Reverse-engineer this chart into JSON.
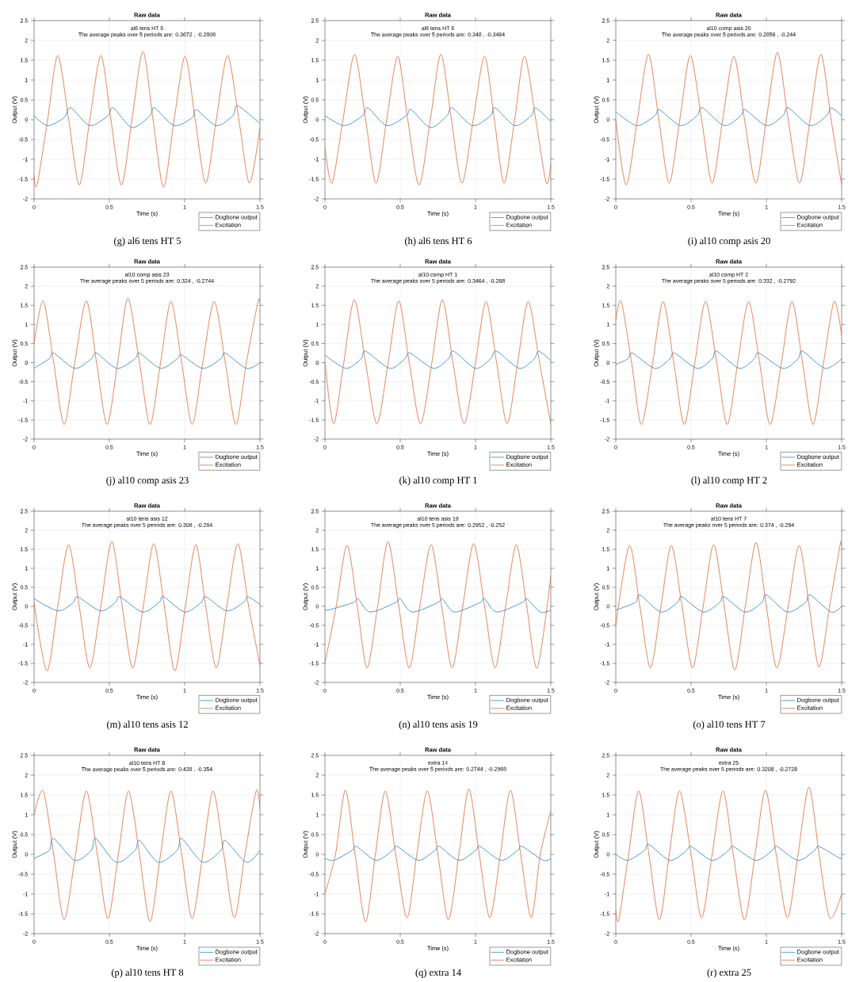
{
  "chart_data": [
    {
      "type": "line",
      "title": "Raw data",
      "xlabel": "Time (s)",
      "ylabel": "Output (V)",
      "xlim": [
        0,
        1.5
      ],
      "ylim": [
        -2,
        2.5
      ],
      "xticks": [
        0,
        0.5,
        1,
        1.5
      ],
      "yticks": [
        -2,
        -1.5,
        -1,
        -0.5,
        0,
        0.5,
        1,
        1.5,
        2,
        2.5
      ],
      "grid": true,
      "legend": "bottom right",
      "annotations": [
        "al6 tens HT 5",
        "The average peaks over 5 periods are: 0.3672 , -0.2808",
        "(g) al6 tens HT 5"
      ],
      "series": [
        {
          "name": "Dogbone output",
          "color": "#0072bd",
          "x": [
            0,
            0.09,
            0.2,
            0.243,
            0.37,
            0.49,
            0.526,
            0.65,
            0.77,
            0.8,
            0.93,
            1.05,
            1.078,
            1.21,
            1.32,
            1.353,
            1.5
          ],
          "values": [
            0.1,
            -0.15,
            0.05,
            0.3,
            -0.15,
            0.1,
            0.3,
            -0.2,
            0.1,
            0.3,
            -0.15,
            0.05,
            0.25,
            -0.15,
            0.1,
            0.35,
            -0.1
          ]
        },
        {
          "name": "Excitation",
          "color": "#d95319",
          "x": [
            0,
            0.02,
            0.09,
            0.157,
            0.23,
            0.3,
            0.37,
            0.444,
            0.51,
            0.58,
            0.65,
            0.723,
            0.79,
            0.86,
            0.93,
            1.003,
            1.07,
            1.14,
            1.21,
            1.285,
            1.36,
            1.43,
            1.5
          ],
          "values": [
            -1.4,
            -1.65,
            0,
            1.62,
            0,
            -1.65,
            0,
            1.62,
            0,
            -1.65,
            0,
            1.72,
            0,
            -1.7,
            0,
            1.6,
            0,
            -1.6,
            0,
            1.62,
            0,
            -1.6,
            -0.2
          ]
        }
      ]
    },
    {
      "type": "line",
      "title": "Raw data",
      "xlabel": "Time (s)",
      "ylabel": "Output (V)",
      "xlim": [
        0,
        1.5
      ],
      "ylim": [
        -2,
        2.5
      ],
      "xticks": [
        0,
        0.5,
        1,
        1.5
      ],
      "yticks": [
        -2,
        -1.5,
        -1,
        -0.5,
        0,
        0.5,
        1,
        1.5,
        2,
        2.5
      ],
      "grid": true,
      "legend": "bottom right",
      "annotations": [
        "al6 tens HT 6",
        "The average peaks over 5 periods are: 0.348 , -0.3464",
        "(h) al6 tens HT 6"
      ],
      "series": [
        {
          "name": "Dogbone output",
          "color": "#0072bd",
          "x": [
            0,
            0.13,
            0.25,
            0.286,
            0.41,
            0.54,
            0.573,
            0.7,
            0.81,
            0.845,
            0.98,
            1.1,
            1.13,
            1.26,
            1.37,
            1.4,
            1.5
          ],
          "values": [
            0.1,
            -0.15,
            0.1,
            0.3,
            -0.15,
            0.1,
            0.25,
            -0.2,
            0.1,
            0.3,
            -0.15,
            0.1,
            0.3,
            -0.15,
            0.1,
            0.3,
            -0.05
          ]
        },
        {
          "name": "Excitation",
          "color": "#d95319",
          "x": [
            0,
            0.047,
            0.12,
            0.197,
            0.27,
            0.34,
            0.41,
            0.483,
            0.55,
            0.625,
            0.7,
            0.77,
            0.84,
            0.91,
            0.985,
            1.06,
            1.125,
            1.19,
            1.26,
            1.325,
            1.4,
            1.47,
            1.5
          ],
          "values": [
            -0.7,
            -1.6,
            0,
            1.65,
            0,
            -1.6,
            0,
            1.6,
            0,
            -1.65,
            0,
            1.65,
            0,
            -1.6,
            0,
            1.6,
            0,
            -1.6,
            0,
            1.6,
            0,
            -1.6,
            -1.1
          ]
        }
      ]
    },
    {
      "type": "line",
      "title": "Raw data",
      "xlabel": "Time (s)",
      "ylabel": "Output (V)",
      "xlim": [
        0,
        1.5
      ],
      "ylim": [
        -2,
        2.5
      ],
      "xticks": [
        0,
        0.5,
        1,
        1.5
      ],
      "yticks": [
        -2,
        -1.5,
        -1,
        -0.5,
        0,
        0.5,
        1,
        1.5,
        2,
        2.5
      ],
      "grid": true,
      "legend": "bottom right",
      "annotations": [
        "al10 comp asis 20",
        "The average peaks over 5 periods are: 0.2856 , -0.244",
        "(i) al10 comp asis 20"
      ],
      "series": [
        {
          "name": "Dogbone output",
          "color": "#0072bd",
          "x": [
            0,
            0.14,
            0.26,
            0.29,
            0.43,
            0.54,
            0.575,
            0.72,
            0.83,
            0.86,
            1.0,
            1.11,
            1.145,
            1.29,
            1.4,
            1.43,
            1.5
          ],
          "values": [
            0.2,
            -0.15,
            0.1,
            0.25,
            -0.15,
            0.1,
            0.3,
            -0.15,
            0.1,
            0.25,
            -0.15,
            0.1,
            0.3,
            -0.15,
            0.1,
            0.3,
            0.1
          ]
        },
        {
          "name": "Excitation",
          "color": "#d95319",
          "x": [
            0,
            0.069,
            0.143,
            0.217,
            0.286,
            0.355,
            0.425,
            0.495,
            0.57,
            0.64,
            0.71,
            0.784,
            0.855,
            0.93,
            1.0,
            1.073,
            1.145,
            1.22,
            1.29,
            1.362,
            1.43,
            1.5
          ],
          "values": [
            0,
            -1.65,
            0,
            1.65,
            0,
            -1.6,
            0,
            1.62,
            0,
            -1.6,
            0,
            1.6,
            0,
            -1.6,
            0,
            1.7,
            0,
            -1.6,
            0,
            1.65,
            0,
            -1.65
          ]
        }
      ]
    },
    {
      "type": "line",
      "title": "Raw data",
      "xlabel": "Time (s)",
      "ylabel": "Output (V)",
      "xlim": [
        0,
        1.5
      ],
      "ylim": [
        -2,
        2.5
      ],
      "xticks": [
        0,
        0.5,
        1,
        1.5
      ],
      "yticks": [
        -2,
        -1.5,
        -1,
        -0.5,
        0,
        0.5,
        1,
        1.5,
        2,
        2.5
      ],
      "grid": true,
      "legend": "bottom right",
      "annotations": [
        "al10 comp asis 23",
        "The average peaks over 5 periods are: 0.324 , -0.2744",
        "(j) al10 comp asis 23"
      ],
      "series": [
        {
          "name": "Dogbone output",
          "color": "#0072bd",
          "x": [
            0,
            0.1,
            0.13,
            0.27,
            0.38,
            0.415,
            0.55,
            0.67,
            0.7,
            0.84,
            0.95,
            0.98,
            1.12,
            1.24,
            1.27,
            1.41,
            1.5
          ],
          "values": [
            -0.15,
            0.1,
            0.25,
            -0.15,
            0.1,
            0.25,
            -0.15,
            0.1,
            0.25,
            -0.15,
            0.1,
            0.2,
            -0.15,
            0.1,
            0.25,
            -0.15,
            0
          ]
        },
        {
          "name": "Excitation",
          "color": "#d95319",
          "x": [
            0,
            0.061,
            0.13,
            0.2,
            0.27,
            0.347,
            0.415,
            0.485,
            0.555,
            0.623,
            0.7,
            0.77,
            0.84,
            0.909,
            0.98,
            1.05,
            1.12,
            1.196,
            1.27,
            1.34,
            1.41,
            1.486,
            1.5
          ],
          "values": [
            0.5,
            1.62,
            0,
            -1.62,
            0,
            1.62,
            0,
            -1.62,
            0,
            1.68,
            0,
            -1.62,
            0,
            1.6,
            0,
            -1.62,
            0,
            1.6,
            0,
            -1.62,
            0,
            1.58,
            1.55
          ]
        }
      ]
    },
    {
      "type": "line",
      "title": "Raw data",
      "xlabel": "Time (s)",
      "ylabel": "Output (V)",
      "xlim": [
        0,
        1.5
      ],
      "ylim": [
        -2,
        2.5
      ],
      "xticks": [
        0,
        0.5,
        1,
        1.5
      ],
      "yticks": [
        -2,
        -1.5,
        -1,
        -0.5,
        0,
        0.5,
        1,
        1.5,
        2,
        2.5
      ],
      "grid": true,
      "legend": "bottom right",
      "annotations": [
        "al10 comp HT 1",
        "The average peaks over 5 periods are: 0.3464 , -0.268",
        "(k) al10 comp HT 1"
      ],
      "series": [
        {
          "name": "Dogbone output",
          "color": "#0072bd",
          "x": [
            0,
            0.14,
            0.24,
            0.27,
            0.43,
            0.53,
            0.565,
            0.72,
            0.82,
            0.855,
            1.0,
            1.1,
            1.14,
            1.29,
            1.39,
            1.42,
            1.5
          ],
          "values": [
            0.2,
            -0.15,
            0.1,
            0.3,
            -0.15,
            0.1,
            0.25,
            -0.15,
            0.1,
            0.3,
            -0.15,
            0.1,
            0.3,
            -0.15,
            0.1,
            0.3,
            0.05
          ]
        },
        {
          "name": "Excitation",
          "color": "#d95319",
          "x": [
            0,
            0.058,
            0.125,
            0.195,
            0.27,
            0.345,
            0.42,
            0.49,
            0.56,
            0.635,
            0.71,
            0.78,
            0.85,
            0.925,
            1.0,
            1.07,
            1.14,
            1.21,
            1.28,
            1.35,
            1.425,
            1.5
          ],
          "values": [
            0,
            -1.6,
            0,
            1.65,
            0,
            -1.6,
            0,
            1.62,
            0,
            -1.6,
            0,
            1.65,
            0,
            -1.6,
            0,
            1.6,
            0,
            -1.6,
            0,
            1.6,
            0,
            -1.6
          ]
        }
      ]
    },
    {
      "type": "line",
      "title": "Raw data",
      "xlabel": "Time (s)",
      "ylabel": "Output (V)",
      "xlim": [
        0,
        1.5
      ],
      "ylim": [
        -2,
        2.5
      ],
      "xticks": [
        0,
        0.5,
        1,
        1.5
      ],
      "yticks": [
        -2,
        -1.5,
        -1,
        -0.5,
        0,
        0.5,
        1,
        1.5,
        2,
        2.5
      ],
      "grid": true,
      "legend": "bottom right",
      "annotations": [
        "al10 comp HT 2",
        "The average peaks over 5 periods are: 0.332 , -0.2792",
        "(l) al10 comp HT 2"
      ],
      "series": [
        {
          "name": "Dogbone output",
          "color": "#0072bd",
          "x": [
            0,
            0.08,
            0.11,
            0.26,
            0.36,
            0.39,
            0.54,
            0.64,
            0.67,
            0.82,
            0.92,
            0.95,
            1.11,
            1.21,
            1.24,
            1.39,
            1.5
          ],
          "values": [
            -0.05,
            0.1,
            0.25,
            -0.15,
            0.1,
            0.25,
            -0.15,
            0.1,
            0.3,
            -0.15,
            0.1,
            0.25,
            -0.15,
            0.1,
            0.3,
            -0.15,
            0.1
          ]
        },
        {
          "name": "Excitation",
          "color": "#d95319",
          "x": [
            0,
            0.036,
            0.105,
            0.17,
            0.245,
            0.314,
            0.385,
            0.455,
            0.525,
            0.596,
            0.67,
            0.74,
            0.81,
            0.882,
            0.955,
            1.025,
            1.1,
            1.17,
            1.24,
            1.31,
            1.38,
            1.45,
            1.5
          ],
          "values": [
            1.1,
            1.6,
            0,
            -1.62,
            0,
            1.6,
            0,
            -1.62,
            0,
            1.6,
            0,
            -1.62,
            0,
            1.6,
            0,
            -1.62,
            0,
            1.6,
            0,
            -1.62,
            0,
            1.6,
            0.7
          ]
        }
      ]
    },
    {
      "type": "line",
      "title": "Raw data",
      "xlabel": "Time (s)",
      "ylabel": "Output (V)",
      "xlim": [
        0,
        1.5
      ],
      "ylim": [
        -2,
        2.5
      ],
      "xticks": [
        0,
        0.5,
        1,
        1.5
      ],
      "yticks": [
        -2,
        -1.5,
        -1,
        -0.5,
        0,
        0.5,
        1,
        1.5,
        2,
        2.5
      ],
      "grid": true,
      "legend": "bottom right",
      "annotations": [
        "al10 tens asis 12",
        "The average peaks over 5 periods are: 0.308 , -0.284",
        "(m) al10 tens asis 12"
      ],
      "series": [
        {
          "name": "Dogbone output",
          "color": "#0072bd",
          "x": [
            0,
            0.16,
            0.26,
            0.29,
            0.44,
            0.54,
            0.57,
            0.72,
            0.83,
            0.86,
            1.0,
            1.11,
            1.14,
            1.28,
            1.39,
            1.42,
            1.5
          ],
          "values": [
            0.2,
            -0.12,
            0.1,
            0.25,
            -0.12,
            0.1,
            0.25,
            -0.15,
            0.1,
            0.25,
            -0.15,
            0.1,
            0.25,
            -0.12,
            0.1,
            0.25,
            0.05
          ]
        },
        {
          "name": "Excitation",
          "color": "#d95319",
          "x": [
            0,
            0.085,
            0.157,
            0.229,
            0.3,
            0.37,
            0.443,
            0.516,
            0.585,
            0.655,
            0.725,
            0.795,
            0.865,
            0.935,
            1.005,
            1.074,
            1.14,
            1.21,
            1.28,
            1.353,
            1.425,
            1.5
          ],
          "values": [
            0.1,
            -1.7,
            0,
            1.62,
            0,
            -1.62,
            0,
            1.7,
            0,
            -1.62,
            0,
            1.65,
            0,
            -1.7,
            0,
            1.62,
            0,
            -1.62,
            0,
            1.65,
            0,
            -1.55
          ]
        }
      ]
    },
    {
      "type": "line",
      "title": "Raw data",
      "xlabel": "Time (s)",
      "ylabel": "Output (V)",
      "xlim": [
        0,
        1.5
      ],
      "ylim": [
        -2,
        2.5
      ],
      "xticks": [
        0,
        0.5,
        1,
        1.5
      ],
      "yticks": [
        -2,
        -1.5,
        -1,
        -0.5,
        0,
        0.5,
        1,
        1.5,
        2,
        2.5
      ],
      "grid": true,
      "legend": "bottom right",
      "annotations": [
        "al10 tens asis 19",
        "The average peaks over 5 periods are: 0.2952 , -0.252",
        "(n) al10 tens asis 19"
      ],
      "series": [
        {
          "name": "Dogbone output",
          "color": "#0072bd",
          "x": [
            0,
            0.02,
            0.19,
            0.22,
            0.3,
            0.47,
            0.5,
            0.58,
            0.75,
            0.78,
            0.86,
            1.03,
            1.06,
            1.14,
            1.31,
            1.34,
            1.43,
            1.5
          ],
          "values": [
            -0.05,
            -0.1,
            0.1,
            0.2,
            -0.15,
            0.1,
            0.2,
            -0.15,
            0.1,
            0.2,
            -0.15,
            0.1,
            0.2,
            -0.15,
            0.1,
            0.2,
            -0.15,
            -0.1
          ]
        },
        {
          "name": "Excitation",
          "color": "#d95319",
          "x": [
            0,
            0.075,
            0.147,
            0.215,
            0.28,
            0.35,
            0.419,
            0.49,
            0.56,
            0.63,
            0.705,
            0.775,
            0.845,
            0.915,
            0.988,
            1.06,
            1.13,
            1.2,
            1.271,
            1.34,
            1.41,
            1.5
          ],
          "values": [
            -1.5,
            0,
            1.6,
            0,
            -1.62,
            0,
            1.7,
            0,
            -1.62,
            0,
            1.62,
            0,
            -1.62,
            0,
            1.65,
            0,
            -1.62,
            0,
            1.62,
            0,
            -1.62,
            0.8
          ]
        }
      ]
    },
    {
      "type": "line",
      "title": "Raw data",
      "xlabel": "Time (s)",
      "ylabel": "Output (V)",
      "xlim": [
        0,
        1.5
      ],
      "ylim": [
        -2,
        2.5
      ],
      "xticks": [
        0,
        0.5,
        1,
        1.5
      ],
      "yticks": [
        -2,
        -1.5,
        -1,
        -0.5,
        0,
        0.5,
        1,
        1.5,
        2,
        2.5
      ],
      "grid": true,
      "legend": "bottom right",
      "annotations": [
        "al10 tens HT 7",
        "The average peaks over 5 periods are: 0.374 , -0.294",
        "(o) al10 tens HT 7"
      ],
      "series": [
        {
          "name": "Dogbone output",
          "color": "#0072bd",
          "x": [
            0,
            0.13,
            0.16,
            0.3,
            0.41,
            0.44,
            0.58,
            0.69,
            0.72,
            0.86,
            0.97,
            1.0,
            1.14,
            1.26,
            1.29,
            1.43,
            1.5
          ],
          "values": [
            -0.1,
            0.1,
            0.3,
            -0.15,
            0.1,
            0.25,
            -0.15,
            0.1,
            0.25,
            -0.15,
            0.1,
            0.3,
            -0.15,
            0.1,
            0.3,
            -0.15,
            0
          ]
        },
        {
          "name": "Excitation",
          "color": "#d95319",
          "x": [
            0,
            0.09,
            0.16,
            0.23,
            0.3,
            0.369,
            0.44,
            0.51,
            0.58,
            0.65,
            0.72,
            0.79,
            0.86,
            0.932,
            1.0,
            1.07,
            1.145,
            1.218,
            1.285,
            1.35,
            1.42,
            1.49,
            1.5
          ],
          "values": [
            -0.5,
            1.6,
            0,
            -1.62,
            0,
            1.6,
            0,
            -1.62,
            0,
            1.62,
            0,
            -1.68,
            0,
            1.68,
            0,
            -1.62,
            0,
            1.6,
            0,
            -1.6,
            0,
            1.62,
            1.6
          ]
        }
      ]
    },
    {
      "type": "line",
      "title": "Raw data",
      "xlabel": "Time (s)",
      "ylabel": "Output (V)",
      "xlim": [
        0,
        1.5
      ],
      "ylim": [
        -2,
        2.5
      ],
      "xticks": [
        0,
        0.5,
        1,
        1.5
      ],
      "yticks": [
        -2,
        -1.5,
        -1,
        -0.5,
        0,
        0.5,
        1,
        1.5,
        2,
        2.5
      ],
      "grid": true,
      "legend": "bottom right",
      "annotations": [
        "al10 tens HT 8",
        "The average peaks over 5 periods are: 0.438 , -0.354",
        "(p) al10 tens HT 8"
      ],
      "series": [
        {
          "name": "Dogbone output",
          "color": "#0072bd",
          "x": [
            0,
            0.1,
            0.13,
            0.27,
            0.38,
            0.41,
            0.545,
            0.67,
            0.7,
            0.825,
            0.95,
            0.98,
            1.12,
            1.24,
            1.27,
            1.41,
            1.5
          ],
          "values": [
            -0.1,
            0.1,
            0.4,
            -0.15,
            0.1,
            0.4,
            -0.2,
            0.1,
            0.35,
            -0.2,
            0.1,
            0.4,
            -0.2,
            0.1,
            0.35,
            -0.2,
            0.1
          ]
        },
        {
          "name": "Excitation",
          "color": "#d95319",
          "x": [
            0,
            0.061,
            0.13,
            0.2,
            0.275,
            0.347,
            0.42,
            0.49,
            0.56,
            0.627,
            0.7,
            0.77,
            0.84,
            0.909,
            0.98,
            1.05,
            1.12,
            1.189,
            1.26,
            1.33,
            1.4,
            1.475,
            1.5
          ],
          "values": [
            1.0,
            1.6,
            0,
            -1.65,
            0,
            1.6,
            0,
            -1.62,
            0,
            1.6,
            0,
            -1.7,
            0,
            1.6,
            0,
            -1.62,
            0,
            1.6,
            0,
            -1.6,
            0,
            1.6,
            1.15
          ]
        }
      ]
    },
    {
      "type": "line",
      "title": "Raw data",
      "xlabel": "Time (s)",
      "ylabel": "Output (V)",
      "xlim": [
        0,
        1.5
      ],
      "ylim": [
        -2,
        2.5
      ],
      "xticks": [
        0,
        0.5,
        1,
        1.5
      ],
      "yticks": [
        -2,
        -1.5,
        -1,
        -0.5,
        0,
        0.5,
        1,
        1.5,
        2,
        2.5
      ],
      "grid": true,
      "legend": "bottom right",
      "annotations": [
        "extra 14",
        "The average peaks over 5 periods are: 0.2744 , -0.2968",
        "(q) extra 14"
      ],
      "series": [
        {
          "name": "Dogbone output",
          "color": "#0072bd",
          "x": [
            0,
            0.06,
            0.18,
            0.21,
            0.34,
            0.45,
            0.48,
            0.62,
            0.73,
            0.76,
            0.89,
            1.0,
            1.03,
            1.17,
            1.28,
            1.31,
            1.45,
            1.5
          ],
          "values": [
            -0.1,
            -0.15,
            0.1,
            0.2,
            -0.15,
            0.1,
            0.2,
            -0.15,
            0.1,
            0.2,
            -0.15,
            0.1,
            0.2,
            -0.15,
            0.1,
            0.2,
            -0.15,
            -0.1
          ]
        },
        {
          "name": "Excitation",
          "color": "#d95319",
          "x": [
            0,
            0.07,
            0.136,
            0.2,
            0.27,
            0.335,
            0.401,
            0.47,
            0.545,
            0.61,
            0.68,
            0.75,
            0.82,
            0.89,
            0.956,
            1.025,
            1.095,
            1.165,
            1.232,
            1.3,
            1.37,
            1.43,
            1.5
          ],
          "values": [
            -1.0,
            0,
            1.62,
            0,
            -1.7,
            0,
            1.6,
            0,
            -1.6,
            0,
            1.6,
            0,
            -1.65,
            0,
            1.65,
            0,
            -1.6,
            0,
            1.62,
            0,
            -1.6,
            0,
            1.1
          ]
        }
      ]
    },
    {
      "type": "line",
      "title": "Raw data",
      "xlabel": "Time (s)",
      "ylabel": "Output (V)",
      "xlim": [
        0,
        1.5
      ],
      "ylim": [
        -2,
        2.5
      ],
      "xticks": [
        0,
        0.5,
        1,
        1.5
      ],
      "yticks": [
        -2,
        -1.5,
        -1,
        -0.5,
        0,
        0.5,
        1,
        1.5,
        2,
        2.5
      ],
      "grid": true,
      "legend": "bottom right",
      "annotations": [
        "extra 25",
        "The average peaks over 5 periods are: 0.3208 , -0.2728",
        "(r) extra 25"
      ],
      "series": [
        {
          "name": "Dogbone output",
          "color": "#0072bd",
          "x": [
            0,
            0.08,
            0.19,
            0.22,
            0.36,
            0.47,
            0.5,
            0.64,
            0.75,
            0.78,
            0.93,
            1.04,
            1.07,
            1.21,
            1.32,
            1.35,
            1.49,
            1.5
          ],
          "values": [
            0,
            -0.15,
            0.1,
            0.25,
            -0.15,
            0.1,
            0.2,
            -0.15,
            0.1,
            0.2,
            -0.15,
            0.1,
            0.2,
            -0.15,
            0.1,
            0.2,
            -0.1,
            -0.05
          ]
        },
        {
          "name": "Excitation",
          "color": "#d95319",
          "x": [
            0,
            0.02,
            0.085,
            0.152,
            0.22,
            0.29,
            0.355,
            0.423,
            0.5,
            0.57,
            0.64,
            0.712,
            0.78,
            0.855,
            0.925,
            0.994,
            1.065,
            1.14,
            1.21,
            1.283,
            1.35,
            1.42,
            1.5
          ],
          "values": [
            -1.4,
            -1.65,
            0,
            1.6,
            0,
            -1.65,
            0,
            1.6,
            0,
            -1.6,
            0,
            1.6,
            0,
            -1.65,
            0,
            1.62,
            0,
            -1.6,
            0,
            1.7,
            0,
            -1.6,
            -1.0
          ]
        }
      ]
    }
  ]
}
